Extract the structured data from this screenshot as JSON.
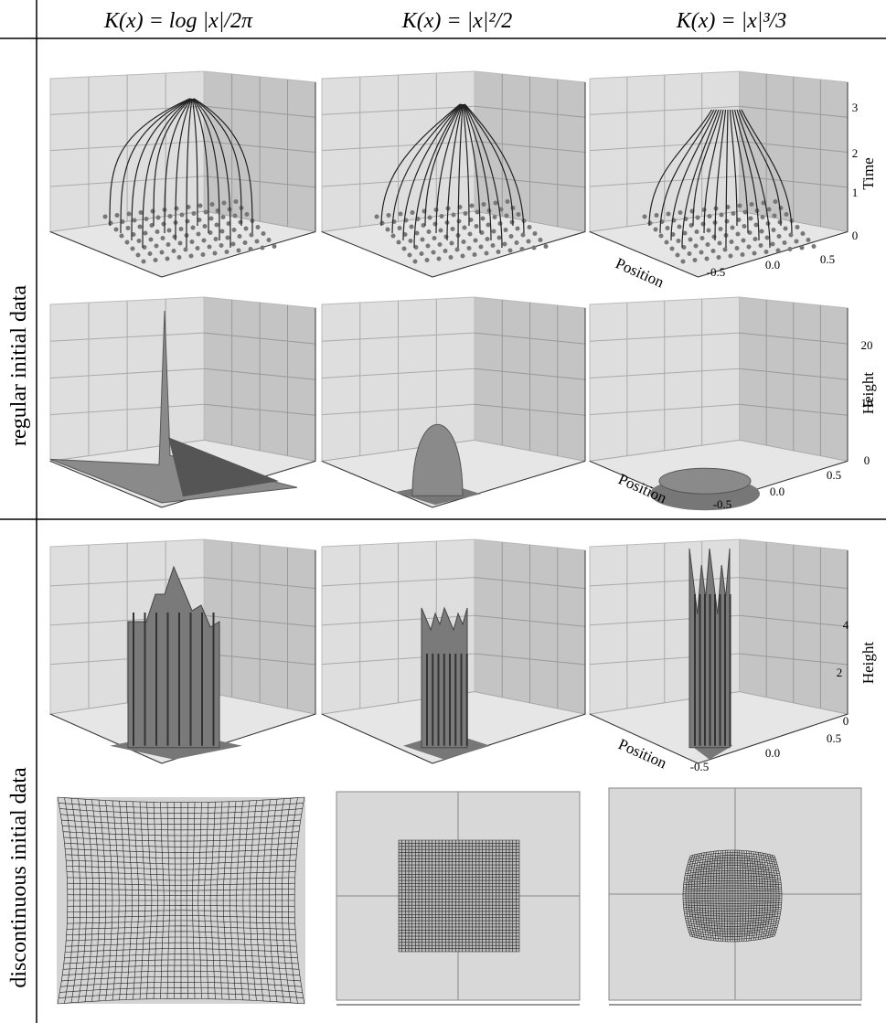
{
  "header": {
    "columns": [
      "K(x) = log |x|/2π",
      "K(x) = |x|²/2",
      "K(x) = |x|³/3"
    ]
  },
  "rows": [
    {
      "label": "regular initial data"
    },
    {
      "label": "discontinuous initial data"
    }
  ],
  "axes": [
    {
      "z_label": "Time",
      "z_ticks": [
        "0",
        "1",
        "2",
        "3"
      ],
      "x_label": "Position",
      "x_ticks": [
        "-0.5",
        "0.0",
        "0.5"
      ]
    },
    {
      "z_label": "Height",
      "z_ticks": [
        "0",
        "10",
        "20"
      ],
      "x_label": "Position",
      "x_ticks": [
        "-0.5",
        "0.0",
        "0.5"
      ]
    },
    {
      "z_label": "Height",
      "z_ticks": [
        "0",
        "2",
        "4"
      ],
      "x_label": "Position",
      "x_ticks": [
        "-0.5",
        "0.0",
        "0.5"
      ]
    }
  ]
}
